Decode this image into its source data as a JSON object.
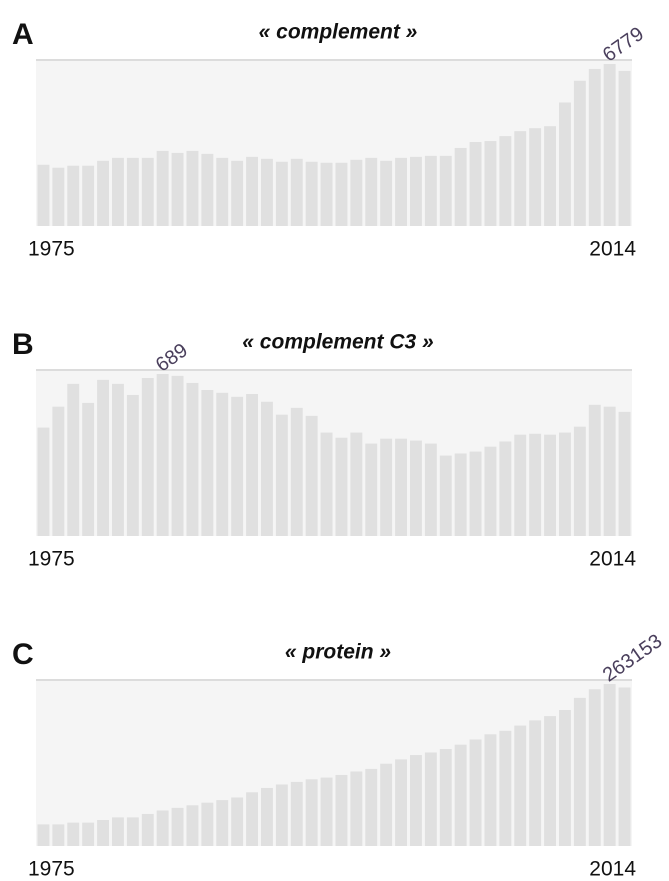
{
  "chart_data": [
    {
      "type": "bar",
      "panel": "A",
      "title": "« complement »",
      "color": "#e0e0e0",
      "categories": [
        "1975",
        null,
        null,
        null,
        null,
        null,
        null,
        null,
        null,
        null,
        null,
        null,
        null,
        null,
        null,
        null,
        null,
        null,
        null,
        null,
        null,
        null,
        null,
        null,
        null,
        null,
        null,
        null,
        null,
        null,
        null,
        null,
        null,
        null,
        null,
        null,
        null,
        null,
        null,
        "2014"
      ],
      "values": [
        2563,
        2439,
        2522,
        2522,
        2728,
        2852,
        2852,
        2852,
        3142,
        3059,
        3142,
        3018,
        2852,
        2728,
        2894,
        2811,
        2687,
        2811,
        2687,
        2646,
        2646,
        2770,
        2852,
        2728,
        2852,
        2894,
        2935,
        2935,
        3266,
        3514,
        3555,
        3762,
        3969,
        4093,
        4175,
        5168,
        6077,
        6573,
        6779,
        6490
      ],
      "value_labels": [
        null,
        null,
        null,
        null,
        null,
        null,
        null,
        null,
        null,
        null,
        null,
        null,
        null,
        null,
        null,
        null,
        null,
        null,
        null,
        null,
        null,
        null,
        null,
        null,
        null,
        null,
        null,
        null,
        null,
        null,
        null,
        null,
        null,
        null,
        null,
        null,
        null,
        null,
        "6779",
        null
      ]
    },
    {
      "type": "bar",
      "panel": "B",
      "title": "« complement C3 »",
      "color": "#e0e0e0",
      "categories": [
        "1975",
        null,
        null,
        null,
        null,
        null,
        null,
        null,
        null,
        null,
        null,
        null,
        null,
        null,
        null,
        null,
        null,
        null,
        null,
        null,
        null,
        null,
        null,
        null,
        null,
        null,
        null,
        null,
        null,
        null,
        null,
        null,
        null,
        null,
        null,
        null,
        null,
        null,
        null,
        "2014"
      ],
      "values": [
        461,
        550,
        647,
        566,
        664,
        647,
        600,
        672,
        689,
        681,
        651,
        621,
        609,
        592,
        604,
        571,
        516,
        545,
        511,
        440,
        418,
        440,
        393,
        414,
        414,
        406,
        393,
        342,
        351,
        359,
        380,
        402,
        431,
        435,
        431,
        440,
        465,
        558,
        550,
        528
      ],
      "value_labels": [
        null,
        null,
        null,
        null,
        null,
        null,
        null,
        null,
        "689",
        null,
        null,
        null,
        null,
        null,
        null,
        null,
        null,
        null,
        null,
        null,
        null,
        null,
        null,
        null,
        null,
        null,
        null,
        null,
        null,
        null,
        null,
        null,
        null,
        null,
        null,
        null,
        null,
        null,
        null,
        null
      ]
    },
    {
      "type": "bar",
      "panel": "C",
      "title": "« protein »",
      "color": "#e0e0e0",
      "categories": [
        "1975",
        null,
        null,
        null,
        null,
        null,
        null,
        null,
        null,
        null,
        null,
        null,
        null,
        null,
        null,
        null,
        null,
        null,
        null,
        null,
        null,
        null,
        null,
        null,
        null,
        null,
        null,
        null,
        null,
        null,
        null,
        null,
        null,
        null,
        null,
        null,
        null,
        null,
        null,
        "2014"
      ],
      "values": [
        35175,
        35175,
        37989,
        37989,
        42210,
        46431,
        46431,
        52059,
        57687,
        61908,
        66129,
        70350,
        74571,
        78792,
        87234,
        94269,
        99897,
        104118,
        108339,
        111153,
        115374,
        121002,
        125223,
        133665,
        140700,
        147735,
        151956,
        157584,
        164619,
        173061,
        181503,
        187131,
        195573,
        204015,
        211050,
        220899,
        240597,
        254667,
        263153,
        257481
      ],
      "value_labels": [
        null,
        null,
        null,
        null,
        null,
        null,
        null,
        null,
        null,
        null,
        null,
        null,
        null,
        null,
        null,
        null,
        null,
        null,
        null,
        null,
        null,
        null,
        null,
        null,
        null,
        null,
        null,
        null,
        null,
        null,
        null,
        null,
        null,
        null,
        null,
        null,
        null,
        null,
        "263153",
        null
      ]
    }
  ]
}
